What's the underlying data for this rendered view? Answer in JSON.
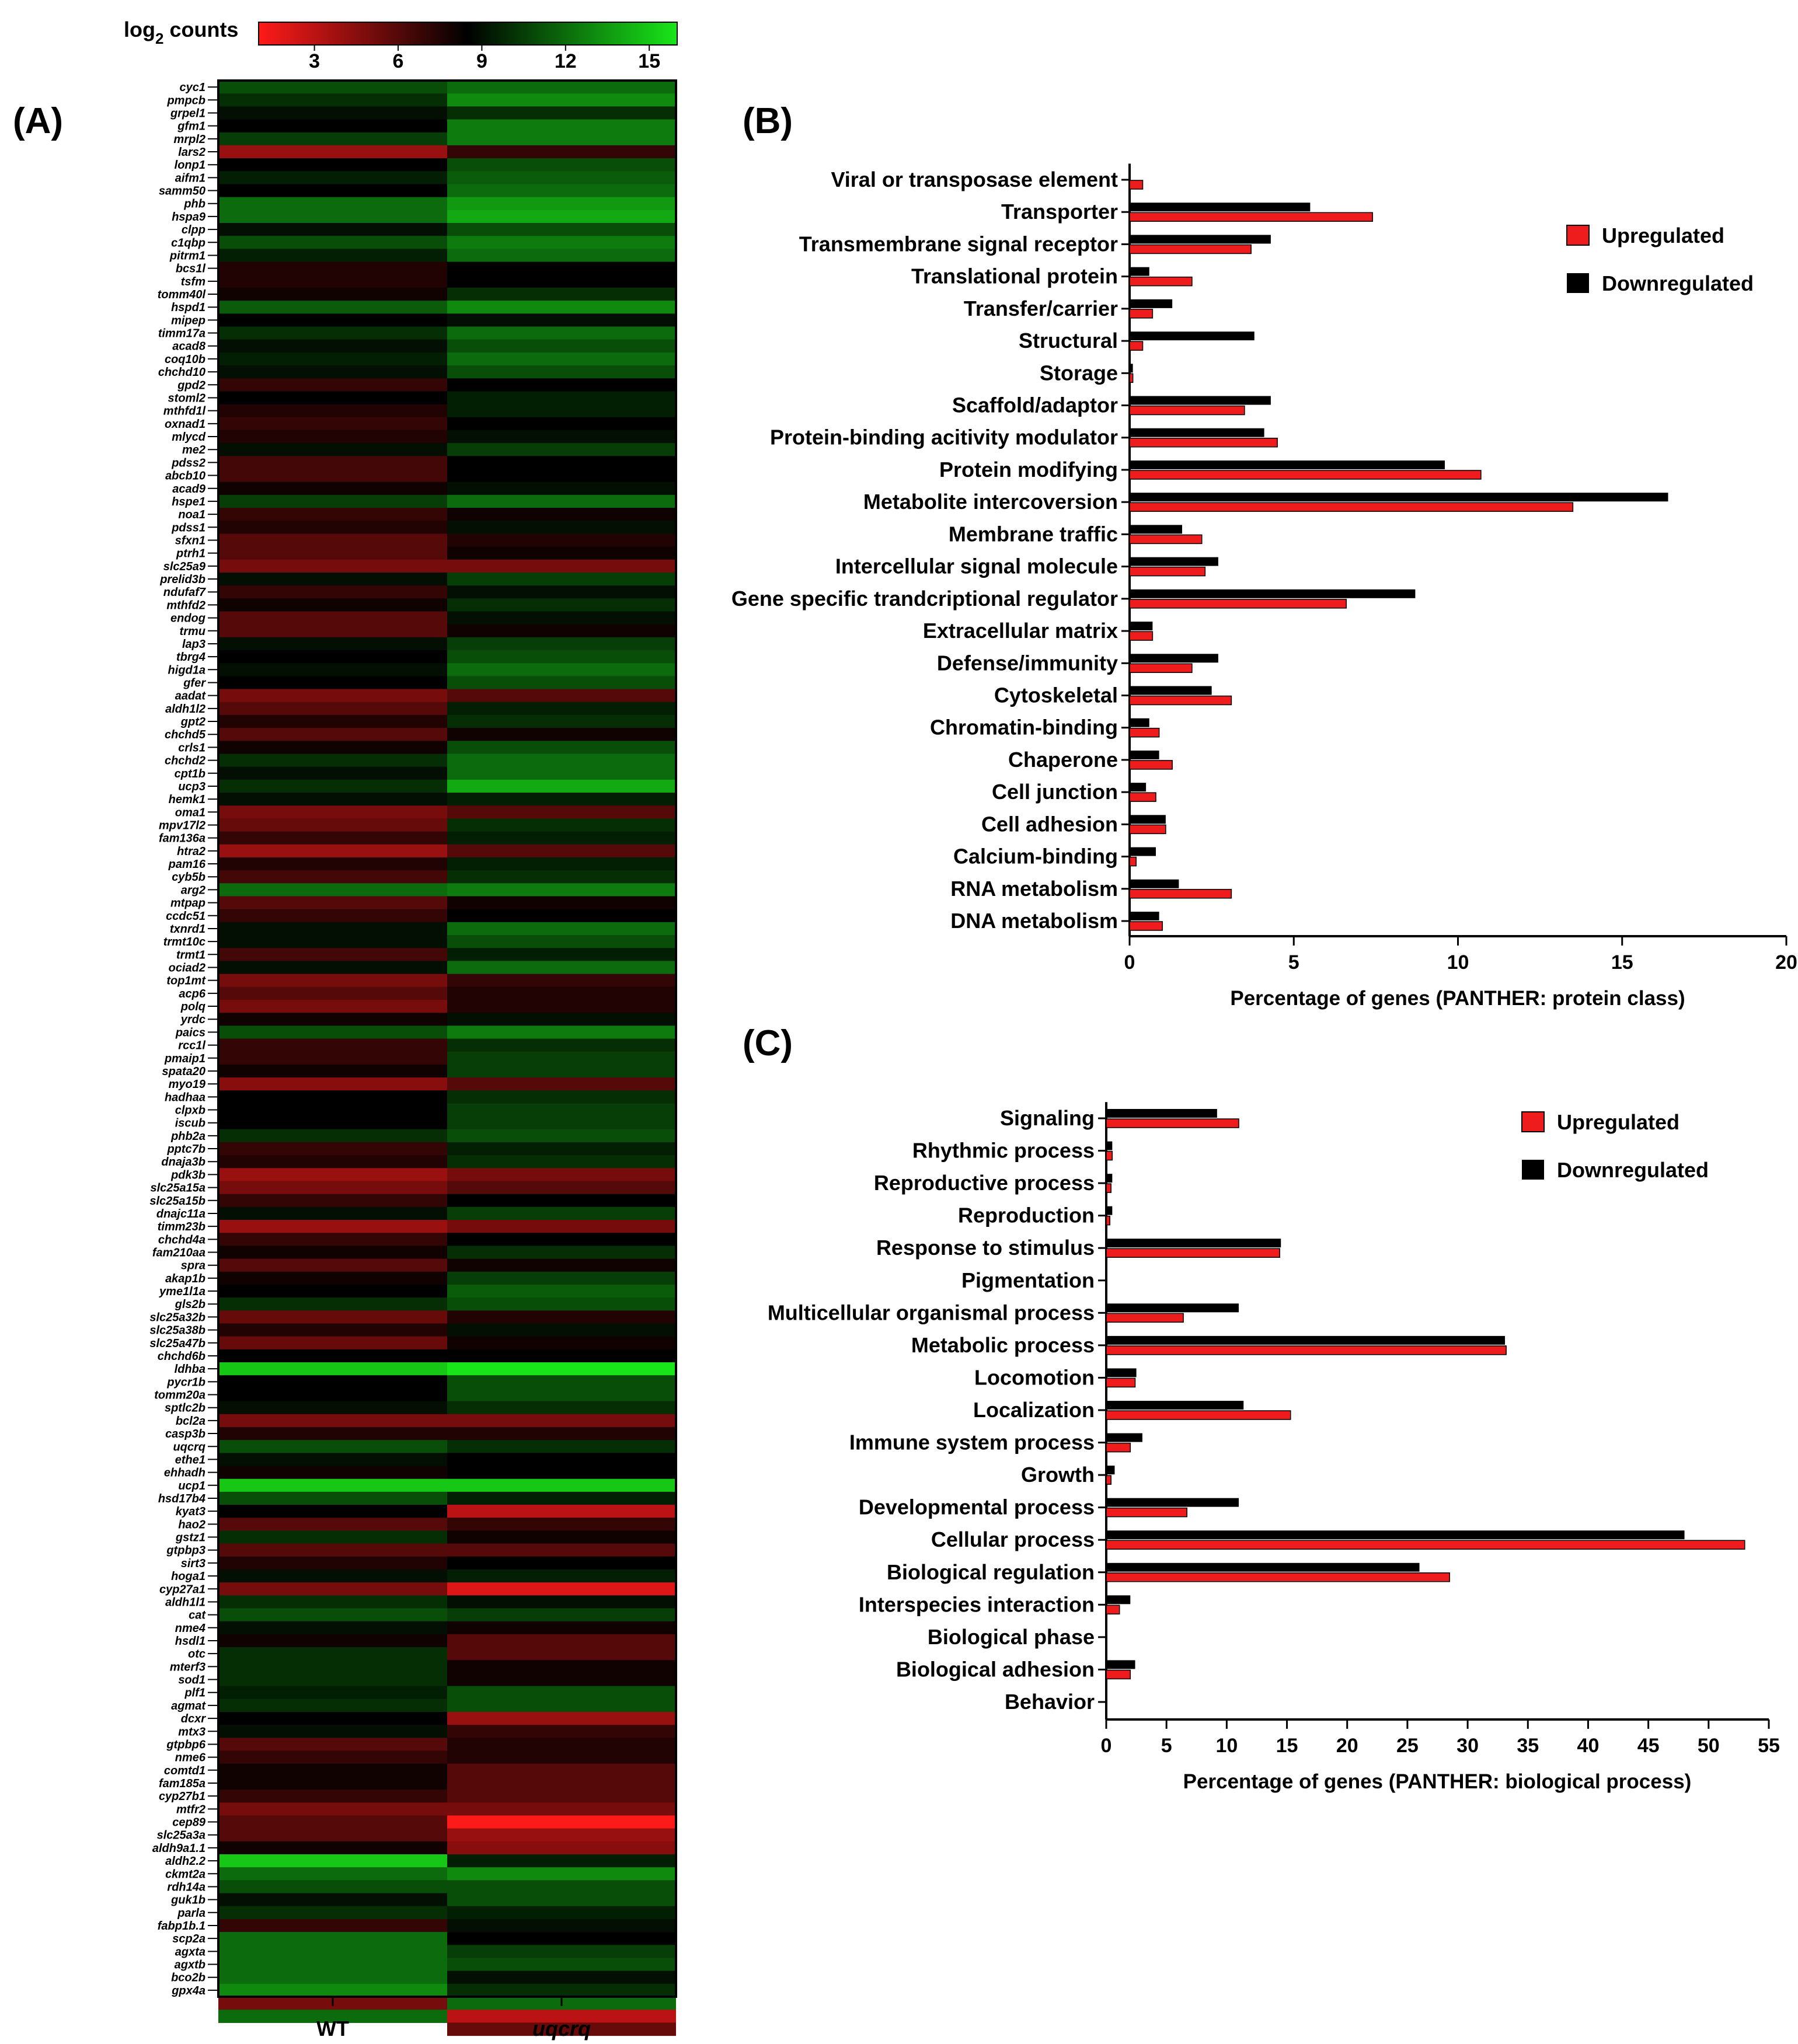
{
  "figure": {
    "panel_a_label": "(A)",
    "panel_b_label": "(B)",
    "panel_c_label": "(C)"
  },
  "chart_data": [
    {
      "id": "A",
      "type": "heatmap",
      "title": "",
      "colorbar": {
        "label_main": "log",
        "label_sub": "2",
        "label_tail": " counts",
        "ticks": [
          3,
          6,
          9,
          12,
          15
        ],
        "range": [
          1,
          16
        ],
        "colors": {
          "low": "#ff1a1a",
          "mid": "#000000",
          "high": "#19e619"
        }
      },
      "columns": [
        "WT",
        "uqcrq"
      ],
      "genes": [
        "cyc1",
        "pmpcb",
        "grpel1",
        "gfm1",
        "mrpl2",
        "lars2",
        "lonp1",
        "aifm1",
        "samm50",
        "phb",
        "hspa9",
        "clpp",
        "c1qbp",
        "pitrm1",
        "bcs1l",
        "tsfm",
        "tomm40l",
        "hspd1",
        "mipep",
        "timm17a",
        "acad8",
        "coq10b",
        "chchd10",
        "gpd2",
        "stoml2",
        "mthfd1l",
        "oxnad1",
        "mlycd",
        "me2",
        "pdss2",
        "abcb10",
        "acad9",
        "hspe1",
        "noa1",
        "pdss1",
        "sfxn1",
        "ptrh1",
        "slc25a9",
        "prelid3b",
        "ndufaf7",
        "mthfd2",
        "endog",
        "trmu",
        "lap3",
        "tbrg4",
        "higd1a",
        "gfer",
        "aadat",
        "aldh1l2",
        "gpt2",
        "chchd5",
        "crls1",
        "chchd2",
        "cpt1b",
        "ucp3",
        "hemk1",
        "oma1",
        "mpv17l2",
        "fam136a",
        "htra2",
        "pam16",
        "cyb5b",
        "arg2",
        "mtpap",
        "ccdc51",
        "txnrd1",
        "trmt10c",
        "trmt1",
        "ociad2",
        "top1mt",
        "acp6",
        "polq",
        "yrdc",
        "paics",
        "rcc1l",
        "pmaip1",
        "spata20",
        "myo19",
        "hadhaa",
        "clpxb",
        "iscub",
        "phb2a",
        "pptc7b",
        "dnaja3b",
        "pdk3b",
        "slc25a15a",
        "slc25a15b",
        "dnajc11a",
        "timm23b",
        "chchd4a",
        "fam210aa",
        "spra",
        "akap1b",
        "yme1l1a",
        "gls2b",
        "slc25a32b",
        "slc25a38b",
        "slc25a47b",
        "chchd6b",
        "ldhba",
        "pycr1b",
        "tomm20a",
        "sptlc2b",
        "bcl2a",
        "casp3b",
        "uqcrq",
        "ethe1",
        "ehhadh",
        "ucp1",
        "hsd17b4",
        "kyat3",
        "hao2",
        "gstz1",
        "gtpbp3",
        "sirt3",
        "hoga1",
        "cyp27a1",
        "aldh1l1",
        "cat",
        "nme4",
        "hsdl1",
        "otc",
        "mterf3",
        "sod1",
        "plf1",
        "agmat",
        "dcxr",
        "mtx3",
        "gtpbp6",
        "nme6",
        "comtd1",
        "fam185a",
        "cyp27b1",
        "mtfr2",
        "cep89",
        "slc25a3a",
        "aldh9a1.1",
        "aldh2.2",
        "ckmt2a",
        "rdh14a",
        "guk1b",
        "parla",
        "fabp1b.1",
        "scp2a",
        "agxta",
        "agxtb",
        "bco2b",
        "gpx4a"
      ],
      "values": {
        "WT": [
          11,
          10,
          9,
          8.5,
          10.5,
          4,
          8.5,
          9.5,
          8.5,
          12,
          12,
          9,
          11,
          9.5,
          7.5,
          7.5,
          8,
          11.5,
          8.5,
          10,
          9,
          9.5,
          9,
          7,
          8.5,
          7.5,
          7,
          7.5,
          9,
          6.5,
          6.5,
          8,
          10.5,
          7,
          7.5,
          6,
          6,
          5,
          9,
          7,
          8,
          6,
          6,
          9,
          8.5,
          9,
          8.5,
          5,
          6,
          7.5,
          6,
          8,
          10,
          9,
          10,
          9,
          5,
          5.5,
          7,
          4,
          7.5,
          6.5,
          12,
          6,
          7,
          9,
          9,
          6.5,
          9,
          5,
          6,
          5,
          8,
          11,
          7,
          7,
          8,
          4.5,
          8.5,
          8.5,
          8.5,
          10,
          7,
          7.5,
          4,
          5,
          7,
          9,
          4,
          7,
          8,
          6,
          8,
          8.5,
          10,
          5.5,
          7.5,
          5.5,
          8.5,
          15,
          8.5,
          8.5,
          9,
          5,
          7.5,
          11,
          9,
          8,
          15,
          11,
          8.5,
          6,
          10,
          6,
          7.5,
          9,
          5,
          10,
          11,
          9,
          8,
          10,
          10,
          10,
          9.5,
          10,
          8.5,
          9,
          6,
          7,
          8,
          8,
          7,
          5,
          6,
          6,
          8,
          15,
          12,
          11,
          9,
          10,
          7,
          12,
          12,
          12,
          12,
          13,
          5,
          12
        ],
        "uqcrq": [
          12,
          13,
          10,
          12.5,
          12.5,
          7,
          11,
          11.5,
          12,
          13.5,
          14,
          11,
          12.5,
          12,
          8.5,
          8.5,
          10,
          13,
          9,
          12,
          11,
          12,
          11,
          8.5,
          9.5,
          9.5,
          8.5,
          9,
          10.5,
          8.5,
          8.5,
          9,
          12,
          8,
          9,
          7.5,
          8,
          5,
          10.5,
          9,
          10,
          9,
          8,
          10.5,
          11,
          12,
          11,
          6,
          9.5,
          10,
          8,
          11,
          12,
          12,
          14,
          9.5,
          6,
          10,
          9.5,
          6,
          9.5,
          10,
          12.5,
          8,
          8.5,
          12,
          11,
          9.5,
          12,
          7,
          7.5,
          7.5,
          9,
          12.5,
          10,
          10.5,
          10.5,
          6,
          10,
          10.5,
          10.5,
          11,
          9.5,
          10,
          5,
          6,
          8.5,
          10.5,
          5,
          8.5,
          10,
          8,
          10.5,
          11.5,
          11,
          7.5,
          9,
          8,
          8.5,
          16,
          11,
          11,
          10,
          5,
          7.5,
          10,
          8.5,
          8.5,
          15,
          9.5,
          3,
          7,
          8,
          6,
          8.5,
          9.5,
          2,
          9,
          10.5,
          8,
          6,
          6,
          8,
          8,
          11,
          11,
          4,
          7,
          7.5,
          7.5,
          6,
          6,
          6,
          5,
          1,
          4,
          4.5,
          9.5,
          13,
          11,
          11,
          9.5,
          9,
          8.5,
          10.5,
          11,
          9,
          10,
          12,
          3,
          5.5
        ]
      }
    },
    {
      "id": "B",
      "type": "bar",
      "orientation": "horizontal",
      "title": "",
      "xlabel": "Percentage of genes (PANTHER: protein class)",
      "ylabel": "",
      "xlim": [
        0,
        20
      ],
      "xticks": [
        0,
        5,
        10,
        15,
        20
      ],
      "legend_position": "top-right",
      "categories": [
        "Viral or transposase element",
        "Transporter",
        "Transmembrane signal receptor",
        "Translational protein",
        "Transfer/carrier",
        "Structural",
        "Storage",
        "Scaffold/adaptor",
        "Protein-binding acitivity modulator",
        "Protein modifying",
        "Metabolite intercoversion",
        "Membrane traffic",
        "Intercellular signal molecule",
        "Gene specific trandcriptional regulator",
        "Extracellular matrix",
        "Defense/immunity",
        "Cytoskeletal",
        "Chromatin-binding",
        "Chaperone",
        "Cell junction",
        "Cell adhesion",
        "Calcium-binding",
        "RNA metabolism",
        "DNA metabolism"
      ],
      "series": [
        {
          "name": "Upregulated",
          "color": "#ee1c1c",
          "values": [
            0.4,
            7.4,
            3.7,
            1.9,
            0.7,
            0.4,
            0.1,
            3.5,
            4.5,
            10.7,
            13.5,
            2.2,
            2.3,
            6.6,
            0.7,
            1.9,
            3.1,
            0.9,
            1.3,
            0.8,
            1.1,
            0.2,
            3.1,
            1.0
          ]
        },
        {
          "name": "Downregulated",
          "color": "#000000",
          "values": [
            0,
            5.5,
            4.3,
            0.6,
            1.3,
            3.8,
            0.1,
            4.3,
            4.1,
            9.6,
            16.4,
            1.6,
            2.7,
            8.7,
            0.7,
            2.7,
            2.5,
            0.6,
            0.9,
            0.5,
            1.1,
            0.8,
            1.5,
            0.9
          ]
        }
      ]
    },
    {
      "id": "C",
      "type": "bar",
      "orientation": "horizontal",
      "title": "",
      "xlabel": "Percentage of genes (PANTHER: biological process)",
      "ylabel": "",
      "xlim": [
        0,
        55
      ],
      "xticks": [
        0,
        5,
        10,
        15,
        20,
        25,
        30,
        35,
        40,
        45,
        50,
        55
      ],
      "legend_position": "top-right",
      "categories": [
        "Signaling",
        "Rhythmic process",
        "Reproductive process",
        "Reproduction",
        "Response to stimulus",
        "Pigmentation",
        "Multicellular organismal process",
        "Metabolic process",
        "Locomotion",
        "Localization",
        "Immune system process",
        "Growth",
        "Developmental process",
        "Cellular process",
        "Biological regulation",
        "Interspecies interaction",
        "Biological phase",
        "Biological adhesion",
        "Behavior"
      ],
      "series": [
        {
          "name": "Upregulated",
          "color": "#ee1c1c",
          "values": [
            11.0,
            0.5,
            0.4,
            0.3,
            14.4,
            0,
            6.4,
            33.2,
            2.4,
            15.3,
            2.0,
            0.4,
            6.7,
            53.0,
            28.5,
            1.1,
            0,
            2.0,
            0
          ]
        },
        {
          "name": "Downregulated",
          "color": "#000000",
          "values": [
            9.2,
            0.5,
            0.5,
            0.5,
            14.5,
            0,
            11.0,
            33.1,
            2.5,
            11.4,
            3.0,
            0.7,
            11.0,
            48.0,
            26.0,
            2.0,
            0,
            2.4,
            0
          ]
        }
      ]
    }
  ]
}
